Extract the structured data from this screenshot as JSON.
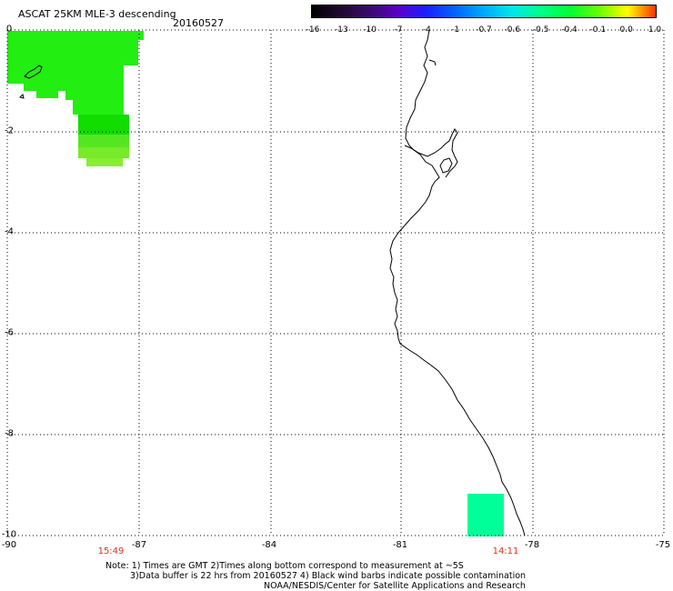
{
  "header": {
    "title": "ASCAT 25KM MLE-3 descending",
    "date": "20160527"
  },
  "colorbar": {
    "ticks": [
      "-16",
      "-13",
      "-10",
      "-7",
      "-4",
      "-1",
      "-0.7",
      "-0.6",
      "-0.5",
      "-0.4",
      "-0.1",
      "0.0",
      "1.0"
    ],
    "colors": [
      "#000000",
      "#3a0a6a",
      "#5a00c8",
      "#1a20ff",
      "#0066ff",
      "#00aaff",
      "#00e8e8",
      "#00ff88",
      "#00ff30",
      "#66ff00",
      "#ffff00",
      "#ff9900",
      "#ff3000"
    ]
  },
  "map": {
    "y_labels": [
      "0",
      "-2",
      "-4",
      "-6",
      "-8",
      "-10"
    ],
    "x_labels": [
      "-90",
      "-87",
      "-84",
      "-81",
      "-78",
      "-75"
    ],
    "times": [
      "15:49",
      "14:11"
    ],
    "data_colors": {
      "green_main": "#22ee11",
      "green_dark": "#11dd00",
      "green_light": "#88ee33",
      "teal": "#00ff99"
    }
  },
  "notes": {
    "line1": "Note: 1) Times are GMT 2)Times along bottom correspond to measurement at ~5S",
    "line2": "3)Data buffer is 22 hrs from 20160527 4) Black wind barbs indicate possible contamination",
    "line3": "NOAA/NESDIS/Center for Satellite Applications and Research"
  }
}
